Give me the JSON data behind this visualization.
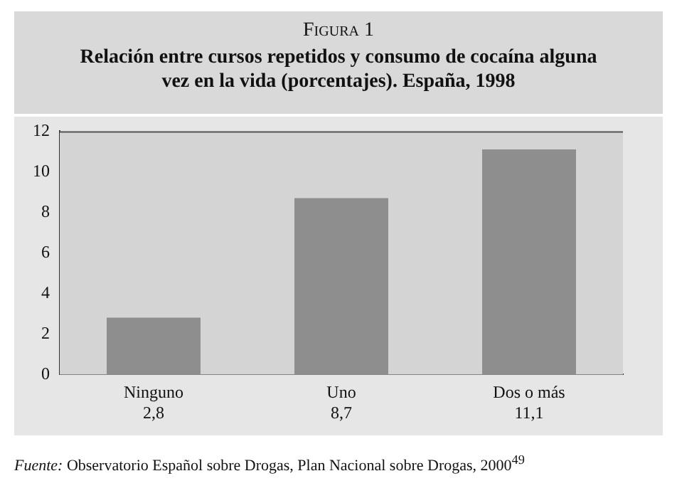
{
  "chart_data": {
    "type": "bar",
    "title": "Figura 1",
    "subtitle": "Relación entre cursos repetidos y consumo de cocaína alguna vez en la vida (porcentajes). España, 1998",
    "categories": [
      "Ninguno",
      "Uno",
      "Dos o más"
    ],
    "values": [
      2.8,
      8.7,
      11.1
    ],
    "value_labels": [
      "2,8",
      "8,7",
      "11,1"
    ],
    "color": "#8e8e8e",
    "ylim": [
      0,
      12
    ],
    "yticks": [
      0,
      2,
      4,
      6,
      8,
      10,
      12
    ],
    "grid": false,
    "legend": false,
    "annotations": [
      "Fuente: Observatorio Español sobre Drogas, Plan Nacional sobre Drogas, 2000$^{49}$"
    ]
  }
}
